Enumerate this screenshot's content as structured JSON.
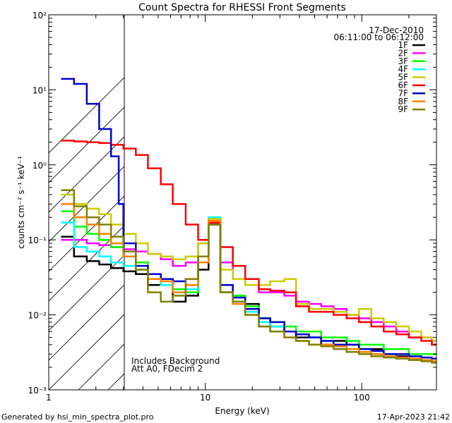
{
  "chart_data": {
    "type": "line",
    "title": "Count Spectra for RHESSI Front Segments",
    "xlabel": "Energy (keV)",
    "ylabel": "counts cm⁻² s⁻¹ keV⁻¹",
    "xscale": "log",
    "yscale": "log",
    "xlim": [
      1,
      300
    ],
    "ylim": [
      0.001,
      100
    ],
    "x_ticks": [
      {
        "value": 1,
        "label": "1"
      },
      {
        "value": 10,
        "label": "10"
      },
      {
        "value": 100,
        "label": "100"
      }
    ],
    "y_ticks": [
      {
        "value": 100,
        "label": "10²"
      },
      {
        "value": 10,
        "label": "10¹"
      },
      {
        "value": 1,
        "label": "10⁰"
      },
      {
        "value": 0.1,
        "label": "10⁻¹"
      },
      {
        "value": 0.01,
        "label": "10⁻²"
      },
      {
        "value": 0.001,
        "label": "10⁻³"
      }
    ],
    "date": "17-Dec-2010",
    "time_range": "06:11:00 to 06:12:00",
    "annotations": [
      "Includes Background",
      "Att A0, FDecim 2"
    ],
    "excluded_region": [
      1,
      3
    ],
    "footer_left": "Generated by hsi_min_spectra_plot.pro",
    "footer_right": "17-Apr-2023 21:42",
    "series": [
      {
        "name": "1F",
        "color": "#000000",
        "x": [
          1.2,
          1.45,
          1.75,
          2.1,
          2.5,
          3,
          3.6,
          4.3,
          5.2,
          6.2,
          7.5,
          9,
          10.5,
          12.5,
          15,
          18,
          22,
          26,
          32,
          38,
          46,
          55,
          66,
          80,
          96,
          115,
          138,
          166,
          200,
          240,
          280
        ],
        "y": [
          0.11,
          0.06,
          0.052,
          0.047,
          0.042,
          0.038,
          0.035,
          0.025,
          0.03,
          0.015,
          0.018,
          0.04,
          0.17,
          0.02,
          0.018,
          0.014,
          0.009,
          0.007,
          0.006,
          0.005,
          0.005,
          0.004,
          0.0045,
          0.004,
          0.0035,
          0.0035,
          0.003,
          0.0028,
          0.0026,
          0.0025,
          0.0024
        ]
      },
      {
        "name": "2F",
        "color": "#ff00ff",
        "x": [
          1.2,
          1.45,
          1.75,
          2.1,
          2.5,
          3,
          3.6,
          4.3,
          5.2,
          6.2,
          7.5,
          9,
          10.5,
          12.5,
          15,
          18,
          22,
          26,
          32,
          38,
          46,
          55,
          66,
          80,
          96,
          115,
          138,
          166,
          200,
          240,
          280
        ],
        "y": [
          0.1,
          0.1,
          0.09,
          0.085,
          0.08,
          0.075,
          0.07,
          0.065,
          0.055,
          0.045,
          0.05,
          0.09,
          0.16,
          0.05,
          0.03,
          0.025,
          0.02,
          0.02,
          0.018,
          0.015,
          0.014,
          0.013,
          0.012,
          0.01,
          0.009,
          0.008,
          0.007,
          0.006,
          0.005,
          0.005,
          0.004
        ]
      },
      {
        "name": "3F",
        "color": "#00ff00",
        "x": [
          1.2,
          1.45,
          1.75,
          2.1,
          2.5,
          3,
          3.6,
          4.3,
          5.2,
          6.2,
          7.5,
          9,
          10.5,
          12.5,
          15,
          18,
          22,
          26,
          32,
          38,
          46,
          55,
          66,
          80,
          96,
          115,
          138,
          166,
          200,
          240,
          280
        ],
        "y": [
          0.24,
          0.15,
          0.12,
          0.1,
          0.08,
          0.07,
          0.05,
          0.035,
          0.028,
          0.022,
          0.02,
          0.05,
          0.17,
          0.025,
          0.018,
          0.013,
          0.009,
          0.008,
          0.007,
          0.006,
          0.006,
          0.005,
          0.005,
          0.0045,
          0.004,
          0.004,
          0.0035,
          0.0035,
          0.003,
          0.003,
          0.003
        ]
      },
      {
        "name": "4F",
        "color": "#00ffff",
        "x": [
          1.2,
          1.45,
          1.75,
          2.1,
          2.5,
          3,
          3.6,
          4.3,
          5.2,
          6.2,
          7.5,
          9,
          10.5,
          12.5,
          15,
          18,
          22,
          26,
          32,
          38,
          46,
          55,
          66,
          80,
          96,
          115,
          138,
          166,
          200,
          240,
          280
        ],
        "y": [
          0.17,
          0.08,
          0.07,
          0.06,
          0.05,
          0.045,
          0.04,
          0.03,
          0.025,
          0.02,
          0.022,
          0.05,
          0.2,
          0.02,
          0.015,
          0.011,
          0.008,
          0.007,
          0.006,
          0.0055,
          0.005,
          0.0045,
          0.004,
          0.004,
          0.0035,
          0.0033,
          0.003,
          0.003,
          0.0028,
          0.0027,
          0.0026
        ]
      },
      {
        "name": "5F",
        "color": "#cccc00",
        "x": [
          1.2,
          1.45,
          1.75,
          2.1,
          2.5,
          3,
          3.6,
          4.3,
          5.2,
          6.2,
          7.5,
          9,
          10.5,
          12.5,
          15,
          18,
          22,
          26,
          32,
          38,
          46,
          55,
          66,
          80,
          96,
          115,
          138,
          166,
          200,
          240,
          280
        ],
        "y": [
          0.4,
          0.3,
          0.26,
          0.22,
          0.16,
          0.12,
          0.09,
          0.065,
          0.06,
          0.055,
          0.06,
          0.09,
          0.19,
          0.04,
          0.03,
          0.025,
          0.025,
          0.028,
          0.03,
          0.014,
          0.012,
          0.012,
          0.011,
          0.01,
          0.012,
          0.009,
          0.008,
          0.007,
          0.006,
          0.005,
          0.0045
        ]
      },
      {
        "name": "6F",
        "color": "#ff0000",
        "x": [
          1.2,
          1.45,
          1.75,
          2.1,
          2.5,
          3,
          3.6,
          4.3,
          5.2,
          6.2,
          7.5,
          9,
          10.5,
          12.5,
          15,
          18,
          22,
          26,
          32,
          38,
          46,
          55,
          66,
          80,
          96,
          115,
          138,
          166,
          200,
          240,
          280
        ],
        "y": [
          2.1,
          2.05,
          2.0,
          1.95,
          1.85,
          1.65,
          1.35,
          0.9,
          0.55,
          0.3,
          0.16,
          0.1,
          0.17,
          0.08,
          0.045,
          0.03,
          0.022,
          0.021,
          0.02,
          0.013,
          0.011,
          0.011,
          0.01,
          0.009,
          0.008,
          0.007,
          0.006,
          0.0055,
          0.005,
          0.0045,
          0.004
        ]
      },
      {
        "name": "7F",
        "color": "#0000cc",
        "x": [
          1.2,
          1.45,
          1.75,
          2.1,
          2.5,
          2.8,
          3,
          3.6,
          4.3,
          5.2,
          6.2,
          7.5,
          9,
          10.5,
          12.5,
          15,
          18,
          22,
          26,
          32,
          38,
          46,
          55,
          66,
          80,
          96,
          115,
          138,
          166,
          200,
          240,
          280
        ],
        "y": [
          14,
          12,
          6.5,
          3,
          1.3,
          0.3,
          0.09,
          0.045,
          0.035,
          0.03,
          0.028,
          0.03,
          0.05,
          0.16,
          0.025,
          0.017,
          0.012,
          0.009,
          0.008,
          0.006,
          0.0055,
          0.005,
          0.0045,
          0.004,
          0.004,
          0.0035,
          0.0033,
          0.003,
          0.003,
          0.0028,
          0.0027,
          0.0026
        ]
      },
      {
        "name": "8F",
        "color": "#ff8000",
        "x": [
          1.2,
          1.45,
          1.75,
          2.1,
          2.5,
          3,
          3.6,
          4.3,
          5.2,
          6.2,
          7.5,
          9,
          10.5,
          12.5,
          15,
          18,
          22,
          26,
          32,
          38,
          46,
          55,
          66,
          80,
          96,
          115,
          138,
          166,
          200,
          240,
          280
        ],
        "y": [
          0.3,
          0.2,
          0.16,
          0.12,
          0.09,
          0.06,
          0.04,
          0.03,
          0.028,
          0.02,
          0.025,
          0.05,
          0.18,
          0.02,
          0.014,
          0.01,
          0.007,
          0.006,
          0.005,
          0.0045,
          0.004,
          0.004,
          0.0038,
          0.0035,
          0.0032,
          0.003,
          0.0028,
          0.0027,
          0.0026,
          0.0025,
          0.0024
        ]
      },
      {
        "name": "9F",
        "color": "#808000",
        "x": [
          1.2,
          1.45,
          1.75,
          2.1,
          2.5,
          3,
          3.6,
          4.3,
          5.2,
          6.2,
          7.5,
          9,
          10.5,
          12.5,
          15,
          18,
          22,
          26,
          32,
          38,
          46,
          55,
          66,
          80,
          96,
          115,
          138,
          166,
          200,
          240,
          280
        ],
        "y": [
          0.46,
          0.28,
          0.2,
          0.16,
          0.11,
          0.07,
          0.04,
          0.02,
          0.015,
          0.018,
          0.03,
          0.06,
          0.16,
          0.02,
          0.015,
          0.01,
          0.007,
          0.006,
          0.005,
          0.0045,
          0.004,
          0.0038,
          0.0035,
          0.0032,
          0.003,
          0.0028,
          0.0027,
          0.0026,
          0.0025,
          0.0024,
          0.0023
        ]
      }
    ]
  }
}
